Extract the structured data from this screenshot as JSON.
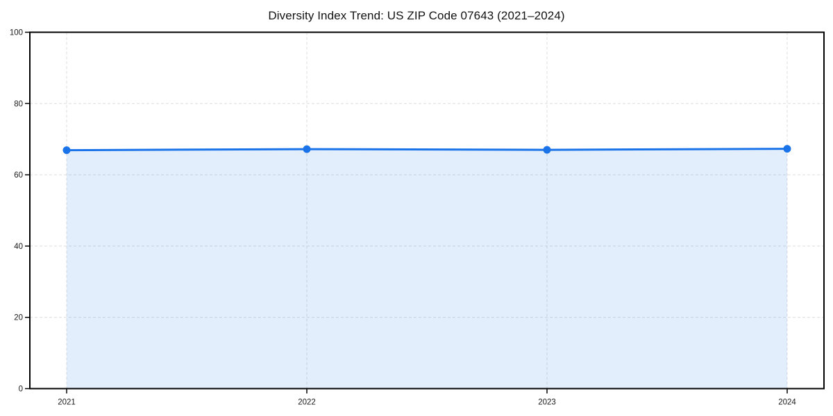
{
  "chart_data": {
    "type": "line",
    "title": "Diversity Index Trend: US ZIP Code 07643 (2021–2024)",
    "x": [
      "2021",
      "2022",
      "2023",
      "2024"
    ],
    "series": [
      {
        "name": "Diversity Index",
        "values": [
          66.9,
          67.2,
          67.0,
          67.3
        ]
      }
    ],
    "xlabel": "",
    "ylabel": "",
    "ylim": [
      0,
      100
    ],
    "yticks": [
      0,
      20,
      40,
      60,
      80,
      100
    ],
    "grid": true,
    "grid_style": "dashed",
    "legend_position": "none",
    "area_fill": true,
    "marker": "circle",
    "colors": {
      "line": "#1a73e8",
      "fill_opacity": 0.12,
      "grid": "#dcdcdc",
      "spine": "#000000",
      "background": "#ffffff",
      "tick_text": "#191919"
    }
  }
}
